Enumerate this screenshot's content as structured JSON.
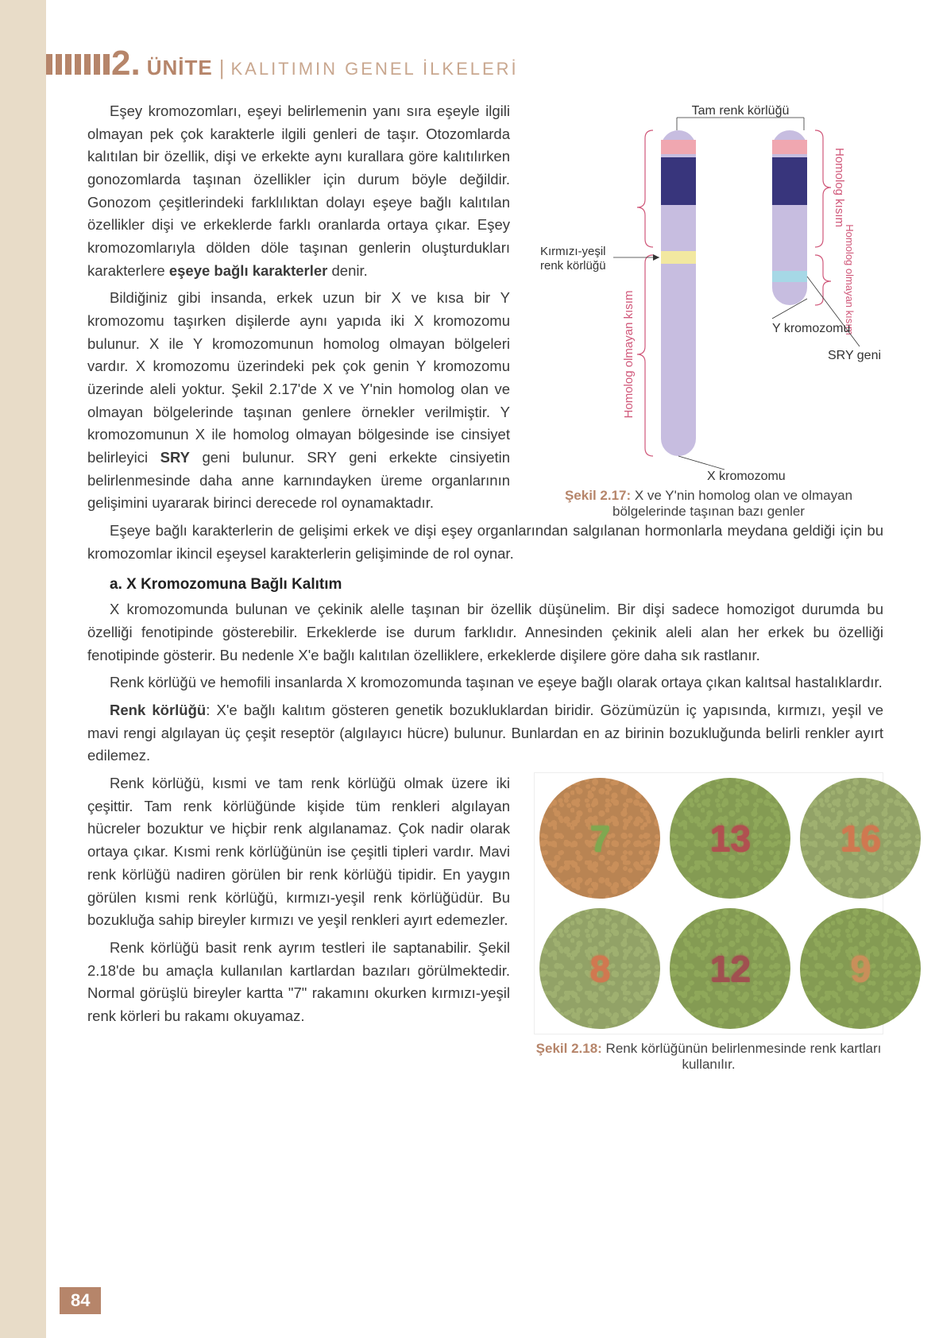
{
  "header": {
    "unit_number": "2",
    "unit_word": "ÜNİTE",
    "unit_subtitle": "KALITIMIN GENEL İLKELERİ"
  },
  "para1": "Eşey kromozomları, eşeyi belirlemenin yanı sıra eşeyle ilgili olmayan pek çok karakterle ilgili genleri de taşır. Otozomlarda kalıtılan bir özellik, dişi ve erkekte aynı kurallara göre kalıtılırken gonozomlarda taşınan özellikler için durum böyle değildir. Gonozom çeşitlerindeki farklılıktan dolayı eşeye bağlı kalıtılan özellikler dişi ve erkeklerde farklı oranlarda ortaya çıkar. Eşey kromozomlarıyla dölden döle taşınan genlerin oluşturdukları karakterlere ",
  "para1_bold": "eşeye bağlı karakterler",
  "para1_tail": " denir.",
  "para2_a": "Bildiğiniz gibi insanda, erkek uzun bir X ve kısa bir Y kromozomu taşırken dişilerde aynı yapıda iki X kromozomu bulunur. X ile Y kromozomunun homolog olmayan bölgeleri vardır. X kromozomu üzerindeki pek çok genin Y kromozomu üzerinde aleli yoktur. Şekil 2.17'de X ve Y'nin homolog olan ve olmayan bölgelerinde taşınan genlere örnekler verilmiştir. Y kromozomunun X ile homolog olmayan bölgesinde ise cinsiyet belirleyici ",
  "para2_bold": "SRY",
  "para2_b": " geni bulunur. SRY geni erkekte cinsiyetin belirlenmesinde daha anne karnındayken üreme organlarının gelişimini uyararak birinci derecede rol oynamaktadır.",
  "para3": "Eşeye bağlı karakterlerin de gelişimi erkek ve dişi eşey organlarından salgılanan hormonlarla meydana geldiği için bu kromozomlar ikincil eşeysel karakterlerin gelişiminde de rol oynar.",
  "heading_a": "a. X Kromozomuna Bağlı Kalıtım",
  "para4": "X kromozomunda bulunan ve çekinik alelle taşınan bir özellik düşünelim. Bir dişi sadece homozigot durumda bu özelliği fenotipinde gösterebilir. Erkeklerde ise durum farklıdır. Annesinden çekinik aleli alan her erkek bu özelliği fenotipinde gösterir. Bu nedenle X'e bağlı kalıtılan özelliklere, erkeklerde dişilere göre daha sık rastlanır.",
  "para5": "Renk körlüğü ve hemofili insanlarda X kromozomunda taşınan ve eşeye bağlı olarak ortaya çıkan kalıtsal hastalıklardır.",
  "para6_bold": "Renk körlüğü",
  "para6": ": X'e bağlı kalıtım gösteren genetik bozukluklardan biridir. Gözümüzün iç yapısında, kırmızı, yeşil ve mavi rengi algılayan üç çeşit reseptör (algılayıcı hücre) bulunur. Bunlardan en az birinin bozukluğunda belirli renkler ayırt edilemez.",
  "para7": "Renk körlüğü, kısmi ve tam renk körlüğü olmak üzere iki çeşittir. Tam renk körlüğünde kişide tüm renkleri algılayan hücreler bozuktur ve hiçbir renk algılanamaz. Çok nadir olarak ortaya çıkar. Kısmi renk körlüğünün ise çeşitli tipleri vardır. Mavi renk körlüğü nadiren görülen bir renk körlüğü tipidir. En yaygın görülen kısmi renk körlüğü, kırmızı-yeşil renk körlüğüdür. Bu bozukluğa sahip bireyler kırmızı ve yeşil renkleri ayırt edemezler.",
  "para8": "Renk körlüğü basit renk ayrım testleri ile saptanabilir. Şekil 2.18'de bu amaçla kullanılan kartlardan bazıları görülmektedir. Normal görüşlü bireyler kartta \"7\" rakamını okurken kırmızı-yeşil renk körleri bu rakamı okuyamaz.",
  "fig17": {
    "title_top": "Tam renk körlüğü",
    "left_homolog": "Homolog kısım",
    "left_nonhom": "Homolog olmayan kısım",
    "right_homolog": "Homolog kısım",
    "right_nonhom": "Homolog olmayan kısım",
    "rg_label": "Kırmızı-yeşil renk körlüğü",
    "y_label": "Y kromozomu",
    "sry_label": "SRY geni",
    "x_label": "X kromozomu",
    "caption_lead": "Şekil 2.17:",
    "caption_text": " X ve Y'nin homolog olan ve olmayan bölgelerinde taşınan bazı genler",
    "colors": {
      "light_lav": "#c7bde0",
      "dark_blue": "#38357c",
      "pink": "#f0a7b0",
      "yellow": "#f2e8a0",
      "cyan": "#a6d8e6",
      "bracket": "#d0587a"
    }
  },
  "fig18": {
    "caption_lead": "Şekil 2.18:",
    "caption_text": " Renk körlüğünün belirlenmesinde renk kartları kullanılır.",
    "plates": [
      {
        "num": "7",
        "fg": "#7fa850",
        "bg": "#c98f5a"
      },
      {
        "num": "13",
        "fg": "#b05050",
        "bg": "#8fa85a"
      },
      {
        "num": "16",
        "fg": "#d07850",
        "bg": "#9fb070"
      },
      {
        "num": "8",
        "fg": "#d07850",
        "bg": "#9fb070"
      },
      {
        "num": "12",
        "fg": "#a05050",
        "bg": "#8fa85a"
      },
      {
        "num": "9",
        "fg": "#c98f5a",
        "bg": "#8fa85a"
      }
    ]
  },
  "page_number": "84"
}
